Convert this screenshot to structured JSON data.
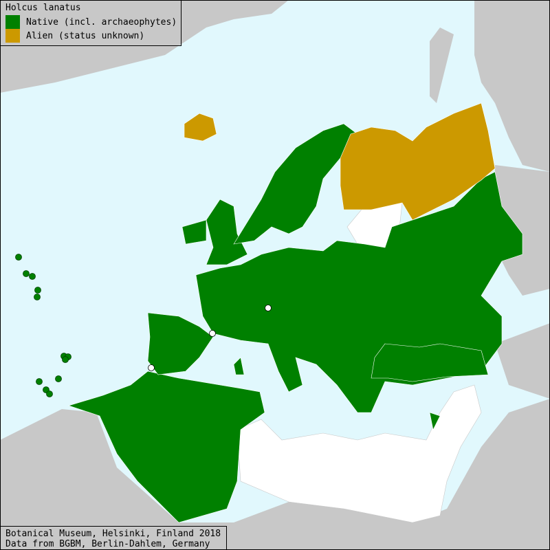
{
  "legend": {
    "title": "Holcus lanatus",
    "items": [
      {
        "label": "Native (incl. archaeophytes)",
        "color": "#008000"
      },
      {
        "label": "Alien (status unknown)",
        "color": "#cc9900"
      }
    ]
  },
  "colors": {
    "sea": "#e1f8fd",
    "land_no_data": "#c8c8c8",
    "absent": "#ffffff",
    "native": "#008000",
    "alien": "#cc9900"
  },
  "footer": {
    "line1": "Botanical Museum, Helsinki, Finland 2018",
    "line2": "Data from BGBM, Berlin-Dahlem, Germany"
  }
}
